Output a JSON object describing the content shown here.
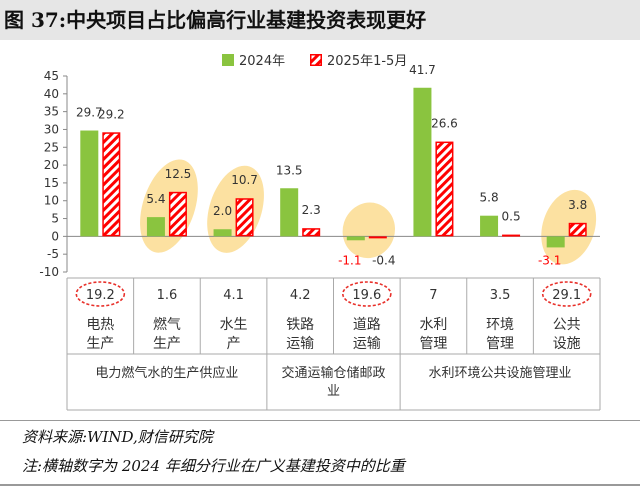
{
  "figure_title": "图 37:中央项目占比偏高行业基建投资表现更好",
  "source_note": "资料来源:WIND,财信研究院",
  "footnote": "注:横轴数字为 2024 年细分行业在广义基建投资中的比重",
  "colors": {
    "series_2024": "#8ac43f",
    "series_2025": "#ff0000",
    "highlight_fill": "#fbd98a",
    "dashed_circle": "#e8302a",
    "negative_label": "#ff0000"
  },
  "chart_data": {
    "type": "bar",
    "categories": [
      "电热生产",
      "燃气生产",
      "水生产",
      "铁路运输",
      "道路运输",
      "水利管理",
      "环境管理",
      "公共设施"
    ],
    "category_shares": [
      "19.2",
      "1.6",
      "4.1",
      "4.2",
      "19.6",
      "7",
      "3.5",
      "29.1"
    ],
    "circled_shares": [
      0,
      4,
      7
    ],
    "highlighted_categories": [
      1,
      2,
      4,
      7
    ],
    "groups": [
      {
        "label": "电力燃气水的生产供应业",
        "categories": [
          0,
          1,
          2
        ]
      },
      {
        "label": "交通运输仓储邮政业",
        "categories": [
          3,
          4
        ]
      },
      {
        "label": "水利环境公共设施管理业",
        "categories": [
          5,
          6,
          7
        ]
      }
    ],
    "series": [
      {
        "name": "2024年",
        "values": [
          29.7,
          5.4,
          2.0,
          13.5,
          -1.1,
          41.7,
          5.8,
          -3.1
        ],
        "labels": [
          "29.7",
          "5.4",
          "2.0",
          "13.5",
          "-1.1",
          "41.7",
          "5.8",
          "-3.1"
        ]
      },
      {
        "name": "2025年1-5月",
        "values": [
          29.2,
          12.5,
          10.7,
          2.3,
          -0.4,
          26.6,
          0.5,
          3.8
        ],
        "labels": [
          "29.2",
          "12.5",
          "10.7",
          "2.3",
          "-0.4",
          "26.6",
          "0.5",
          "3.8"
        ]
      }
    ],
    "yticks": [
      "45",
      "40",
      "35",
      "30",
      "25",
      "20",
      "15",
      "10",
      "5",
      "0",
      "-5",
      "-10"
    ],
    "ylim": [
      -10,
      45
    ],
    "grid": false,
    "legend_position": "top"
  }
}
